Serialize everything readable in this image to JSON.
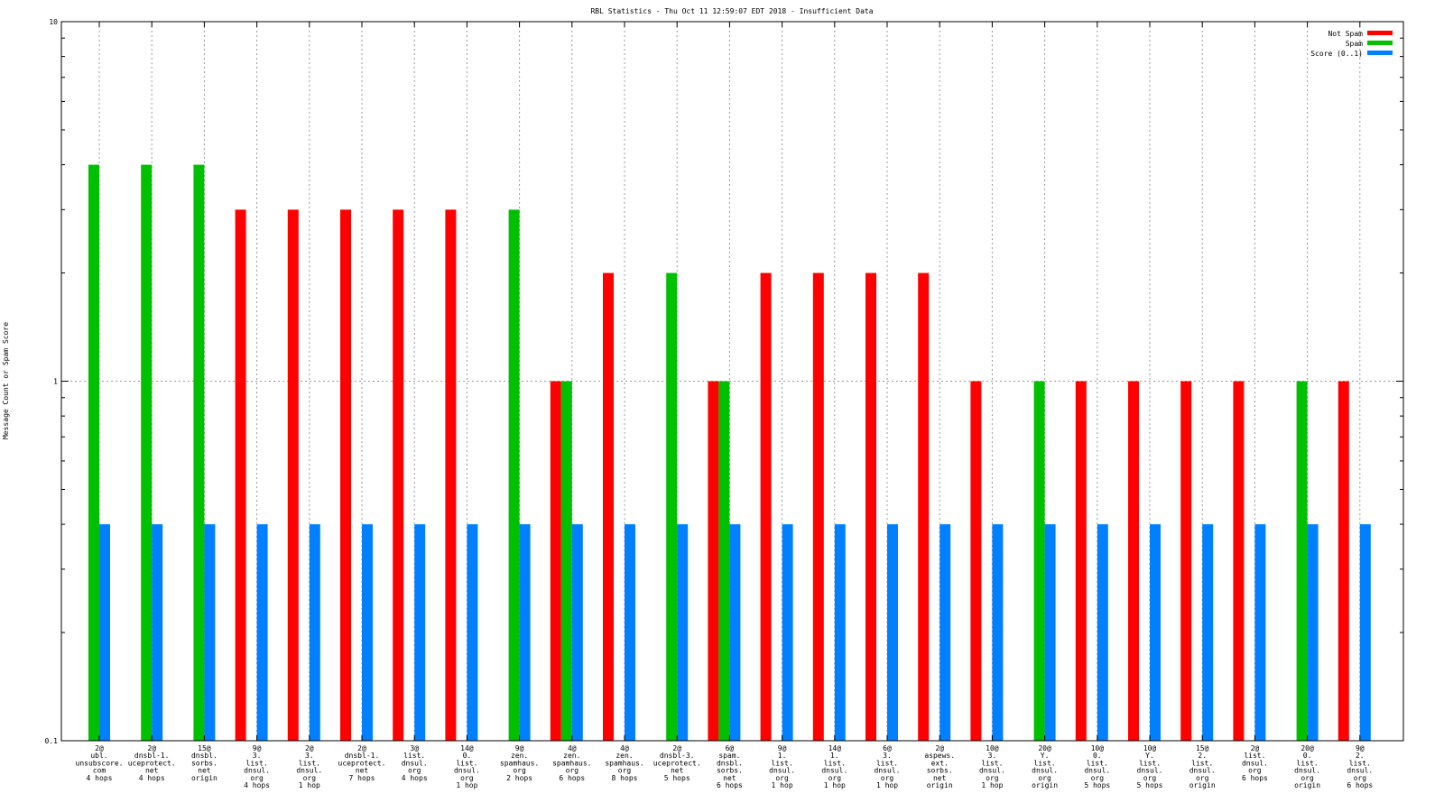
{
  "chart_data": {
    "type": "bar",
    "title": "RBL Statistics - Thu Oct 11 12:59:07 EDT 2018 - Insufficient Data",
    "xlabel": "",
    "ylabel": "Message Count or Spam Score",
    "yscale": "log",
    "ylim": [
      0.1,
      10
    ],
    "yticks": [
      "0.1",
      "1",
      "10"
    ],
    "grid": true,
    "legend_position": "top-right",
    "categories": [
      [
        "2@",
        "ubl.",
        "unsubscore.",
        "com",
        "4 hops"
      ],
      [
        "2@",
        "dnsbl-1.",
        "uceprotect.",
        "net",
        "4 hops"
      ],
      [
        "15@",
        "dnsbl.",
        "sorbs.",
        "net",
        "origin"
      ],
      [
        "9@",
        "3.",
        "list.",
        "dnsul.",
        "org",
        "4 hops"
      ],
      [
        "2@",
        "3.",
        "list.",
        "dnsul.",
        "org",
        "1 hop"
      ],
      [
        "2@",
        "dnsbl-1.",
        "uceprotect.",
        "net",
        "7 hops"
      ],
      [
        "3@",
        "list.",
        "dnsul.",
        "org",
        "4 hops"
      ],
      [
        "14@",
        "0.",
        "list.",
        "dnsul.",
        "org",
        "1 hop"
      ],
      [
        "9@",
        "zen.",
        "spamhaus.",
        "org",
        "2 hops"
      ],
      [
        "4@",
        "zen.",
        "spamhaus.",
        "org",
        "6 hops"
      ],
      [
        "4@",
        "zen.",
        "spamhaus.",
        "org",
        "8 hops"
      ],
      [
        "2@",
        "dnsbl-3.",
        "uceprotect.",
        "net",
        "5 hops"
      ],
      [
        "6@",
        "spam.",
        "dnsbl.",
        "sorbs.",
        "net",
        "6 hops"
      ],
      [
        "9@",
        "1.",
        "list.",
        "dnsul.",
        "org",
        "1 hop"
      ],
      [
        "14@",
        "1.",
        "list.",
        "dnsul.",
        "org",
        "1 hop"
      ],
      [
        "6@",
        "3.",
        "list.",
        "dnsul.",
        "org",
        "1 hop"
      ],
      [
        "2@",
        "aspews.",
        "ext.",
        "sorbs.",
        "net",
        "origin"
      ],
      [
        "10@",
        "3.",
        "list.",
        "dnsul.",
        "org",
        "1 hop"
      ],
      [
        "20@",
        "Y.",
        "list.",
        "dnsul.",
        "org",
        "origin"
      ],
      [
        "10@",
        "0.",
        "list.",
        "dnsul.",
        "org",
        "5 hops"
      ],
      [
        "10@",
        "Y.",
        "list.",
        "dnsul.",
        "org",
        "5 hops"
      ],
      [
        "15@",
        "2.",
        "list.",
        "dnsul.",
        "org",
        "origin"
      ],
      [
        "2@",
        "list.",
        "dnsul.",
        "org",
        "6 hops"
      ],
      [
        "20@",
        "0.",
        "list.",
        "dnsul.",
        "org",
        "origin"
      ],
      [
        "9@",
        "2.",
        "list.",
        "dnsul.",
        "org",
        "6 hops"
      ]
    ],
    "series": [
      {
        "name": "Not Spam",
        "color": "#ff0000",
        "values": [
          null,
          null,
          null,
          3,
          3,
          3,
          3,
          3,
          null,
          1,
          2,
          null,
          1,
          2,
          2,
          2,
          2,
          1,
          null,
          1,
          1,
          1,
          1,
          null,
          1
        ]
      },
      {
        "name": "Spam",
        "color": "#00c000",
        "values": [
          4,
          4,
          4,
          null,
          null,
          null,
          null,
          null,
          3,
          1,
          null,
          2,
          1,
          null,
          null,
          null,
          null,
          null,
          1,
          null,
          null,
          null,
          null,
          1,
          null
        ]
      },
      {
        "name": "Score (0..1)",
        "color": "#0080ff",
        "values": [
          0.4,
          0.4,
          0.4,
          0.4,
          0.4,
          0.4,
          0.4,
          0.4,
          0.4,
          0.4,
          0.4,
          0.4,
          0.4,
          0.4,
          0.4,
          0.4,
          0.4,
          0.4,
          0.4,
          0.4,
          0.4,
          0.4,
          0.4,
          0.4,
          0.4
        ]
      }
    ]
  }
}
